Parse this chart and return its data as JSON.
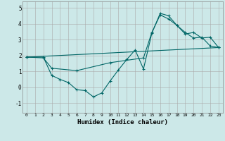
{
  "xlabel": "Humidex (Indice chaleur)",
  "bg_color": "#cce8e8",
  "grid_color": "#aaaaaa",
  "line_color": "#006666",
  "xlim": [
    -0.5,
    23.5
  ],
  "ylim": [
    -1.6,
    5.4
  ],
  "xticks": [
    0,
    1,
    2,
    3,
    4,
    5,
    6,
    7,
    8,
    9,
    10,
    11,
    12,
    13,
    14,
    15,
    16,
    17,
    18,
    19,
    20,
    21,
    22,
    23
  ],
  "yticks": [
    -1,
    0,
    1,
    2,
    3,
    4,
    5
  ],
  "line1_x": [
    0,
    2,
    3,
    4,
    5,
    6,
    7,
    8,
    9,
    10,
    11,
    12,
    13,
    14,
    15,
    16,
    17,
    18,
    19,
    20,
    21,
    22,
    23
  ],
  "line1_y": [
    1.9,
    1.9,
    0.75,
    0.5,
    0.3,
    -0.15,
    -0.2,
    -0.6,
    -0.35,
    0.4,
    1.1,
    1.75,
    2.35,
    1.15,
    3.4,
    4.65,
    4.5,
    3.9,
    3.45,
    3.1,
    3.15,
    2.6,
    2.5
  ],
  "line2_x": [
    0,
    2,
    3,
    6,
    10,
    14,
    15,
    16,
    17,
    18,
    19,
    20,
    21,
    22,
    23
  ],
  "line2_y": [
    1.9,
    1.85,
    1.2,
    1.05,
    1.55,
    1.85,
    3.45,
    4.55,
    4.3,
    3.9,
    3.35,
    3.45,
    3.1,
    3.15,
    2.5
  ],
  "line3_x": [
    0,
    23
  ],
  "line3_y": [
    1.9,
    2.5
  ]
}
